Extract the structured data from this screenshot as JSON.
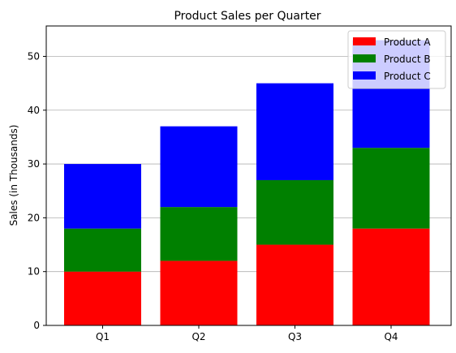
{
  "chart_data": {
    "type": "bar",
    "stacked": true,
    "title": "Product Sales per Quarter",
    "xlabel": "",
    "ylabel": "Sales (in Thousands)",
    "categories": [
      "Q1",
      "Q2",
      "Q3",
      "Q4"
    ],
    "series": [
      {
        "name": "Product A",
        "color": "#ff0000",
        "values": [
          10,
          12,
          15,
          18
        ]
      },
      {
        "name": "Product B",
        "color": "#008000",
        "values": [
          8,
          10,
          12,
          15
        ]
      },
      {
        "name": "Product C",
        "color": "#0000ff",
        "values": [
          12,
          15,
          18,
          20
        ]
      }
    ],
    "ylim": [
      0,
      55.65
    ],
    "yticks": [
      0,
      10,
      20,
      30,
      40,
      50
    ],
    "grid": "y",
    "legend_position": "top-right"
  }
}
